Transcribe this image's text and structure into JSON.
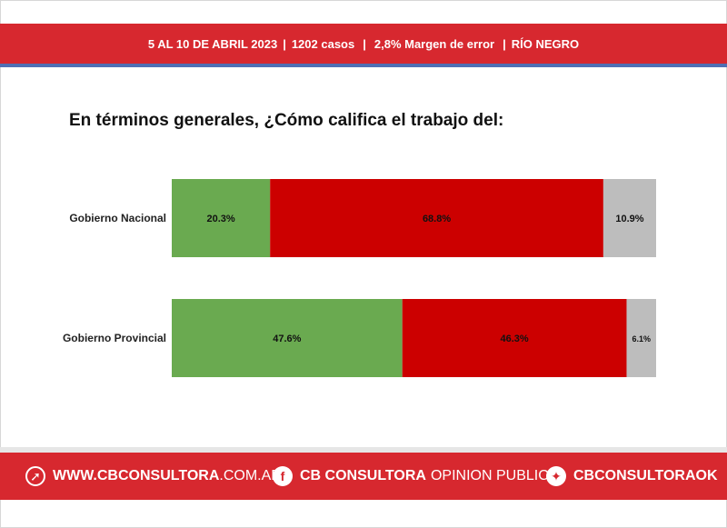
{
  "header": {
    "dates": "5 AL 10 DE ABRIL 2023",
    "sep1": "|",
    "cases": "1202 casos",
    "sep2": "|",
    "margin": "2,8% Margen de error",
    "sep3": "|",
    "region": "RÍO NEGRO"
  },
  "question": "En términos generales, ¿Cómo califica el trabajo del:",
  "chart_data": {
    "type": "bar",
    "orientation": "horizontal",
    "stacked": true,
    "normalized_percent": true,
    "categories": [
      "Gobierno Nacional",
      "Gobierno Provincial"
    ],
    "series": [
      {
        "values": [
          20.3,
          47.6
        ],
        "labels": [
          "20.3%",
          "47.6%"
        ],
        "color": "#6aaa50"
      },
      {
        "values": [
          68.8,
          46.3
        ],
        "labels": [
          "68.8%",
          "46.3%"
        ],
        "color": "#cc0000"
      },
      {
        "values": [
          10.9,
          6.1
        ],
        "labels": [
          "10.9%",
          "6.1%"
        ],
        "color": "#bdbdbd"
      }
    ],
    "legend": "none",
    "grid": false
  },
  "footer": {
    "website_bold": "WWW.CBCONSULTORA",
    "website_light": ".COM.AR",
    "facebook_bold": "CB CONSULTORA",
    "facebook_light": "OPINION PUBLICA",
    "twitter": "CBCONSULTORAOK",
    "icons": [
      "cursor-click-icon",
      "facebook-icon",
      "twitter-icon"
    ],
    "color": "#d7282f"
  }
}
